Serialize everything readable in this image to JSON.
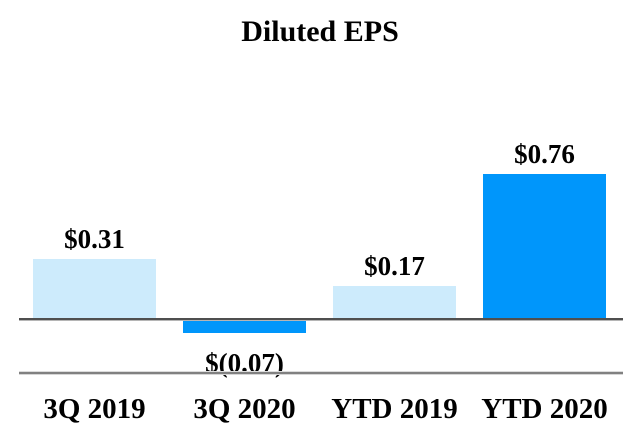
{
  "title": "Diluted EPS",
  "chart_data": {
    "type": "bar",
    "title": "Diluted EPS",
    "categories": [
      "3Q 2019",
      "3Q 2020",
      "YTD 2019",
      "YTD 2020"
    ],
    "values": [
      0.31,
      -0.07,
      0.17,
      0.76
    ],
    "value_labels": [
      "$0.31",
      "$(0.07)",
      "$0.17",
      "$0.76"
    ],
    "bar_colors": [
      "#CDEBFC",
      "#0096FB",
      "#CDEBFC",
      "#0096FB"
    ],
    "xlabel": "",
    "ylabel": "",
    "baseline_value": 0,
    "ylim": [
      -0.1,
      0.8
    ],
    "grid": false,
    "legend": false,
    "axis_line_color": "#4f4f4f",
    "separator_line_color": "#818181",
    "background_color": "#ffffff",
    "text_color": "#000000"
  }
}
